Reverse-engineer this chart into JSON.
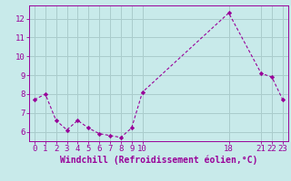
{
  "x_values": [
    0,
    1,
    2,
    3,
    4,
    5,
    6,
    7,
    8,
    9,
    10,
    18,
    21,
    22,
    23
  ],
  "y_values": [
    7.7,
    8.0,
    6.6,
    6.1,
    6.6,
    6.2,
    5.9,
    5.8,
    5.7,
    6.2,
    8.1,
    12.3,
    9.1,
    8.9,
    7.7
  ],
  "line_color": "#990099",
  "marker_color": "#990099",
  "bg_color": "#c8eaea",
  "grid_color": "#aacccc",
  "xlabel": "Windchill (Refroidissement éolien,°C)",
  "xlim": [
    -0.5,
    23.5
  ],
  "ylim": [
    5.5,
    12.7
  ],
  "yticks": [
    6,
    7,
    8,
    9,
    10,
    11,
    12
  ],
  "xticks": [
    0,
    1,
    2,
    3,
    4,
    5,
    6,
    7,
    8,
    9,
    10,
    18,
    21,
    22,
    23
  ],
  "xtick_labels": [
    "0",
    "1",
    "2",
    "3",
    "4",
    "5",
    "6",
    "7",
    "8",
    "9",
    "10",
    "18",
    "21",
    "22",
    "23"
  ],
  "tick_color": "#990099",
  "label_color": "#990099",
  "font_size": 6.5,
  "label_font_size": 7.0
}
